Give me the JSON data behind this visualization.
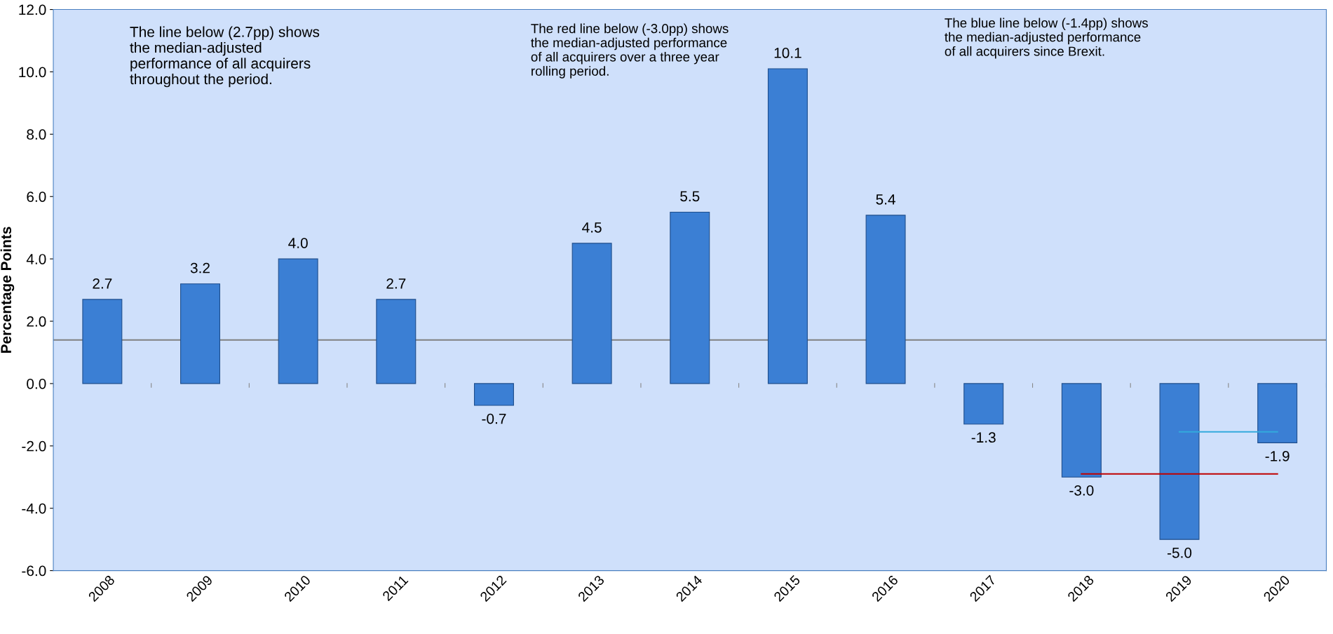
{
  "chart_data": {
    "type": "bar",
    "ylabel": "Percentage Points",
    "categories": [
      "2008",
      "2009",
      "2010",
      "2011",
      "2012",
      "2013",
      "2014",
      "2015",
      "2016",
      "2017",
      "2018",
      "2019",
      "2020"
    ],
    "series": [
      {
        "color": "#3b7fd4",
        "values": [
          2.7,
          3.2,
          4.0,
          2.7,
          -0.7,
          4.5,
          5.5,
          10.1,
          5.4,
          -1.3,
          -3.0,
          -5.0,
          -1.9
        ],
        "value_labels": [
          "2.7",
          "3.2",
          "4.0",
          "2.7",
          "-0.7",
          "4.5",
          "5.5",
          "10.1",
          "5.4",
          "-1.3",
          "-3.0",
          "-5.0",
          "-1.9"
        ]
      },
      {
        "type": "line",
        "color": "#c00000",
        "values": [
          null,
          null,
          null,
          null,
          null,
          null,
          null,
          null,
          null,
          null,
          -2.9,
          -2.9,
          -2.9
        ]
      },
      {
        "type": "line",
        "color": "#33aadd",
        "values": [
          null,
          null,
          null,
          null,
          null,
          null,
          null,
          null,
          null,
          null,
          null,
          -1.55,
          -1.55
        ]
      }
    ],
    "ylim": [
      -6,
      12
    ],
    "yticks": [
      {
        "value": -6,
        "label": "-6.0"
      },
      {
        "value": -4,
        "label": "-4.0"
      },
      {
        "value": -2,
        "label": "-2.0"
      },
      {
        "value": 0,
        "label": "0.0"
      },
      {
        "value": 2,
        "label": "2.0"
      },
      {
        "value": 4,
        "label": "4.0"
      },
      {
        "value": 6,
        "label": "6.0"
      },
      {
        "value": 8,
        "label": "8.0"
      },
      {
        "value": 10,
        "label": "10.0"
      },
      {
        "value": 12,
        "label": "12.0"
      }
    ],
    "ref_lines": [
      {
        "axis": "y",
        "value": 1.4,
        "color": "#808080"
      }
    ],
    "annotations": [
      "The line below (2.7pp) shows\nthe median-adjusted\nperformance of all acquirers\nthroughout the period.",
      "The red line below (-3.0pp) shows\nthe median-adjusted performance\nof all acquirers over a three year\nrolling period.",
      "The blue line below (-1.4pp) shows\nthe median-adjusted performance\nof all acquirers since Brexit."
    ],
    "legend": false
  }
}
